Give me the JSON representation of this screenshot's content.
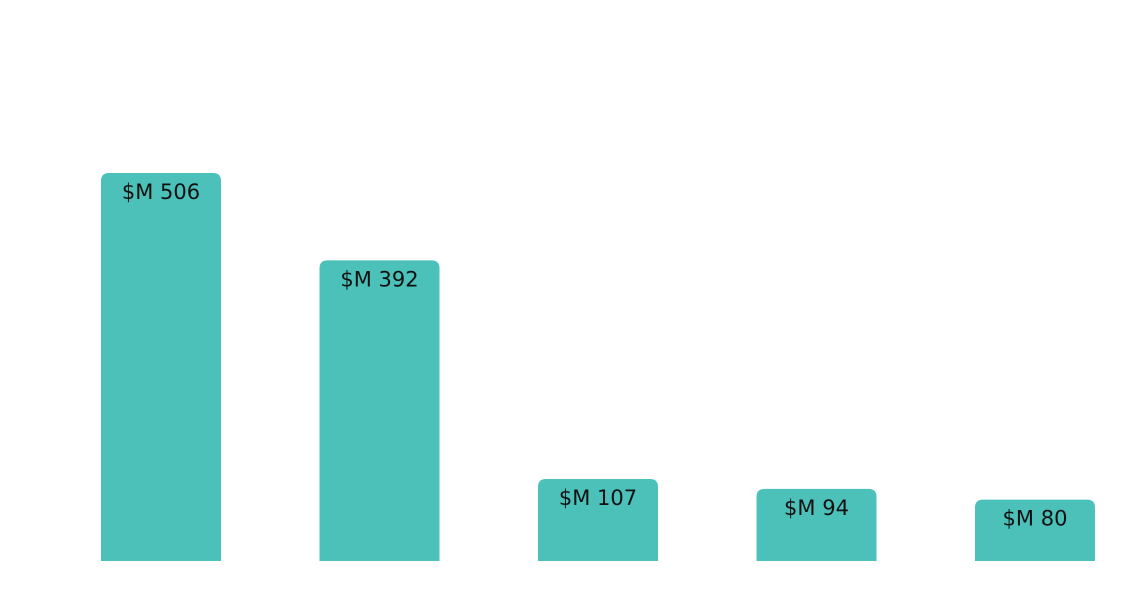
{
  "chart_data": {
    "type": "bar",
    "title": "",
    "xlabel": "",
    "ylabel": "",
    "categories": [
      "",
      "",
      "",
      "",
      ""
    ],
    "values": [
      506,
      392,
      107,
      94,
      80
    ],
    "value_labels": [
      "$M 506",
      "$M 392",
      "$M 107",
      "$M 94",
      "$M 80"
    ],
    "value_prefix": "$M",
    "ylim": [
      0,
      700
    ],
    "grid": false,
    "legend": "none",
    "bar_color": "#4bc1ba",
    "label_color": "#111111"
  }
}
